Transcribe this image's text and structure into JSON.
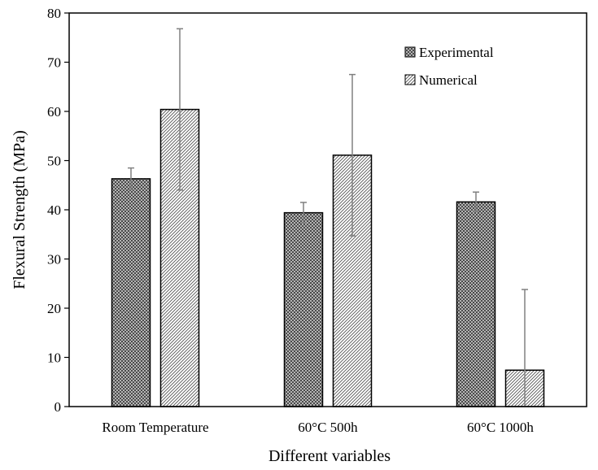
{
  "chart_data": {
    "type": "bar",
    "title": "",
    "xlabel": "Different variables",
    "ylabel": "Flexural Strength (MPa)",
    "ylim": [
      0,
      80
    ],
    "yticks": [
      0,
      10,
      20,
      30,
      40,
      50,
      60,
      70,
      80
    ],
    "grid": false,
    "legend_position": "top-right",
    "categories": [
      "Room Temperature",
      "60°C 500h",
      "60°C 1000h"
    ],
    "series": [
      {
        "name": "Experimental",
        "pattern": "crosshatch-dark",
        "values": [
          46.3,
          39.4,
          41.6
        ],
        "errors": [
          2.2,
          2.1,
          2.0
        ]
      },
      {
        "name": "Numerical",
        "pattern": "diagonal-light",
        "values": [
          60.4,
          51.1,
          7.4
        ],
        "errors": [
          16.4,
          16.4,
          16.4
        ]
      }
    ],
    "colors": {
      "bar_outline": "#000000",
      "experimental_fill": "#3a3a3a",
      "numerical_fill": "#ffffff",
      "numerical_hatch": "#555555",
      "error_bar": "#808080"
    }
  }
}
